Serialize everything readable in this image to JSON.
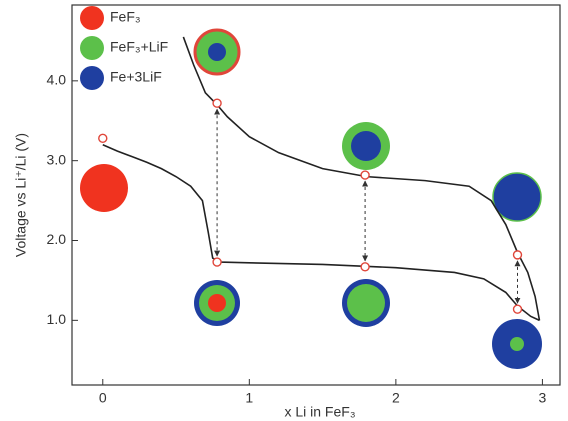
{
  "chart_data": {
    "type": "line",
    "ylabel": "Voltage vs Li⁺/Li (V)",
    "xlabel": "x Li in FeF₃",
    "legend": [
      {
        "label": "FeF₃",
        "color": "#f0331f"
      },
      {
        "label": "FeF₃+LiF",
        "color": "#5cc04a"
      },
      {
        "label": "Fe+3LiF",
        "color": "#1f3fa0"
      }
    ],
    "xlim": [
      -0.21,
      3.12
    ],
    "ylim": [
      0.19,
      4.95
    ],
    "xticks": [
      0,
      1,
      2,
      3
    ],
    "yticks": [
      {
        "value": 1,
        "label": "1.0"
      },
      {
        "value": 2,
        "label": "2.0"
      },
      {
        "value": 3,
        "label": "3.0"
      },
      {
        "value": 4,
        "label": "4.0"
      }
    ],
    "series": [
      {
        "color": "#222222",
        "x": [
          0,
          0.1,
          0.2,
          0.3,
          0.4,
          0.5,
          0.6,
          0.68,
          0.72,
          0.75,
          0.8,
          1.0,
          1.5,
          2.0,
          2.4,
          2.6,
          2.75,
          2.83,
          2.92,
          2.98
        ],
        "values": [
          3.2,
          3.12,
          3.05,
          2.98,
          2.9,
          2.8,
          2.68,
          2.5,
          2.1,
          1.78,
          1.73,
          1.72,
          1.7,
          1.66,
          1.6,
          1.52,
          1.35,
          1.18,
          1.05,
          1.0
        ]
      },
      {
        "color": "#222222",
        "x": [
          2.98,
          2.95,
          2.9,
          2.83,
          2.75,
          2.65,
          2.5,
          2.2,
          1.8,
          1.5,
          1.2,
          1.0,
          0.85,
          0.78,
          0.7,
          0.62,
          0.55
        ],
        "values": [
          1.0,
          1.3,
          1.6,
          1.85,
          2.2,
          2.5,
          2.68,
          2.75,
          2.8,
          2.9,
          3.1,
          3.3,
          3.55,
          3.7,
          3.85,
          4.2,
          4.55
        ]
      }
    ],
    "markers": {
      "color": "#e0463a",
      "x": [
        0,
        0.78,
        0.78,
        1.79,
        1.79,
        2.83,
        2.83
      ],
      "values": [
        3.28,
        3.72,
        1.73,
        2.82,
        1.67,
        1.82,
        1.14
      ]
    }
  }
}
